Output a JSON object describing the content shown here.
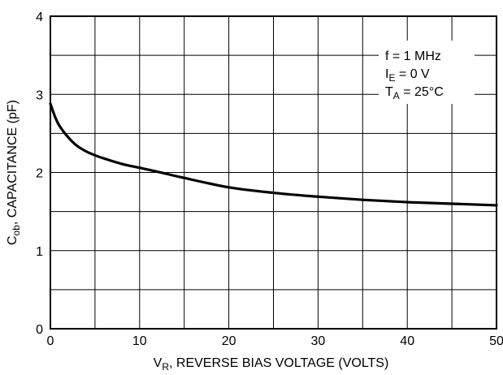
{
  "chart_data": {
    "type": "line",
    "title": "",
    "xlabel": {
      "main": "V",
      "sub": "R",
      "rest": ", REVERSE BIAS VOLTAGE (VOLTS)"
    },
    "ylabel": {
      "main": "C",
      "sub": "ob",
      "rest": ", CAPACITANCE (pF)"
    },
    "xlim": [
      0,
      50
    ],
    "ylim": [
      0,
      4
    ],
    "x_ticks": [
      "0",
      "10",
      "20",
      "30",
      "40",
      "50"
    ],
    "y_ticks": [
      "0",
      "1",
      "2",
      "3",
      "4"
    ],
    "grid": true,
    "grid_x_step": 5,
    "grid_y_step": 0.5,
    "annotations": [
      {
        "main": "f = 1 MHz",
        "sub": "",
        "rest": ""
      },
      {
        "main": "I",
        "sub": "E",
        "rest": " = 0 V"
      },
      {
        "main": "T",
        "sub": "A",
        "rest": " = 25°C"
      }
    ],
    "series": [
      {
        "x": [
          0,
          0.5,
          1,
          2,
          3,
          4,
          5,
          6,
          8,
          10,
          12,
          15,
          20,
          25,
          30,
          35,
          40,
          45,
          50
        ],
        "y": [
          2.88,
          2.72,
          2.6,
          2.45,
          2.34,
          2.27,
          2.22,
          2.18,
          2.11,
          2.06,
          2.01,
          1.93,
          1.81,
          1.74,
          1.69,
          1.65,
          1.62,
          1.6,
          1.58
        ]
      }
    ]
  }
}
